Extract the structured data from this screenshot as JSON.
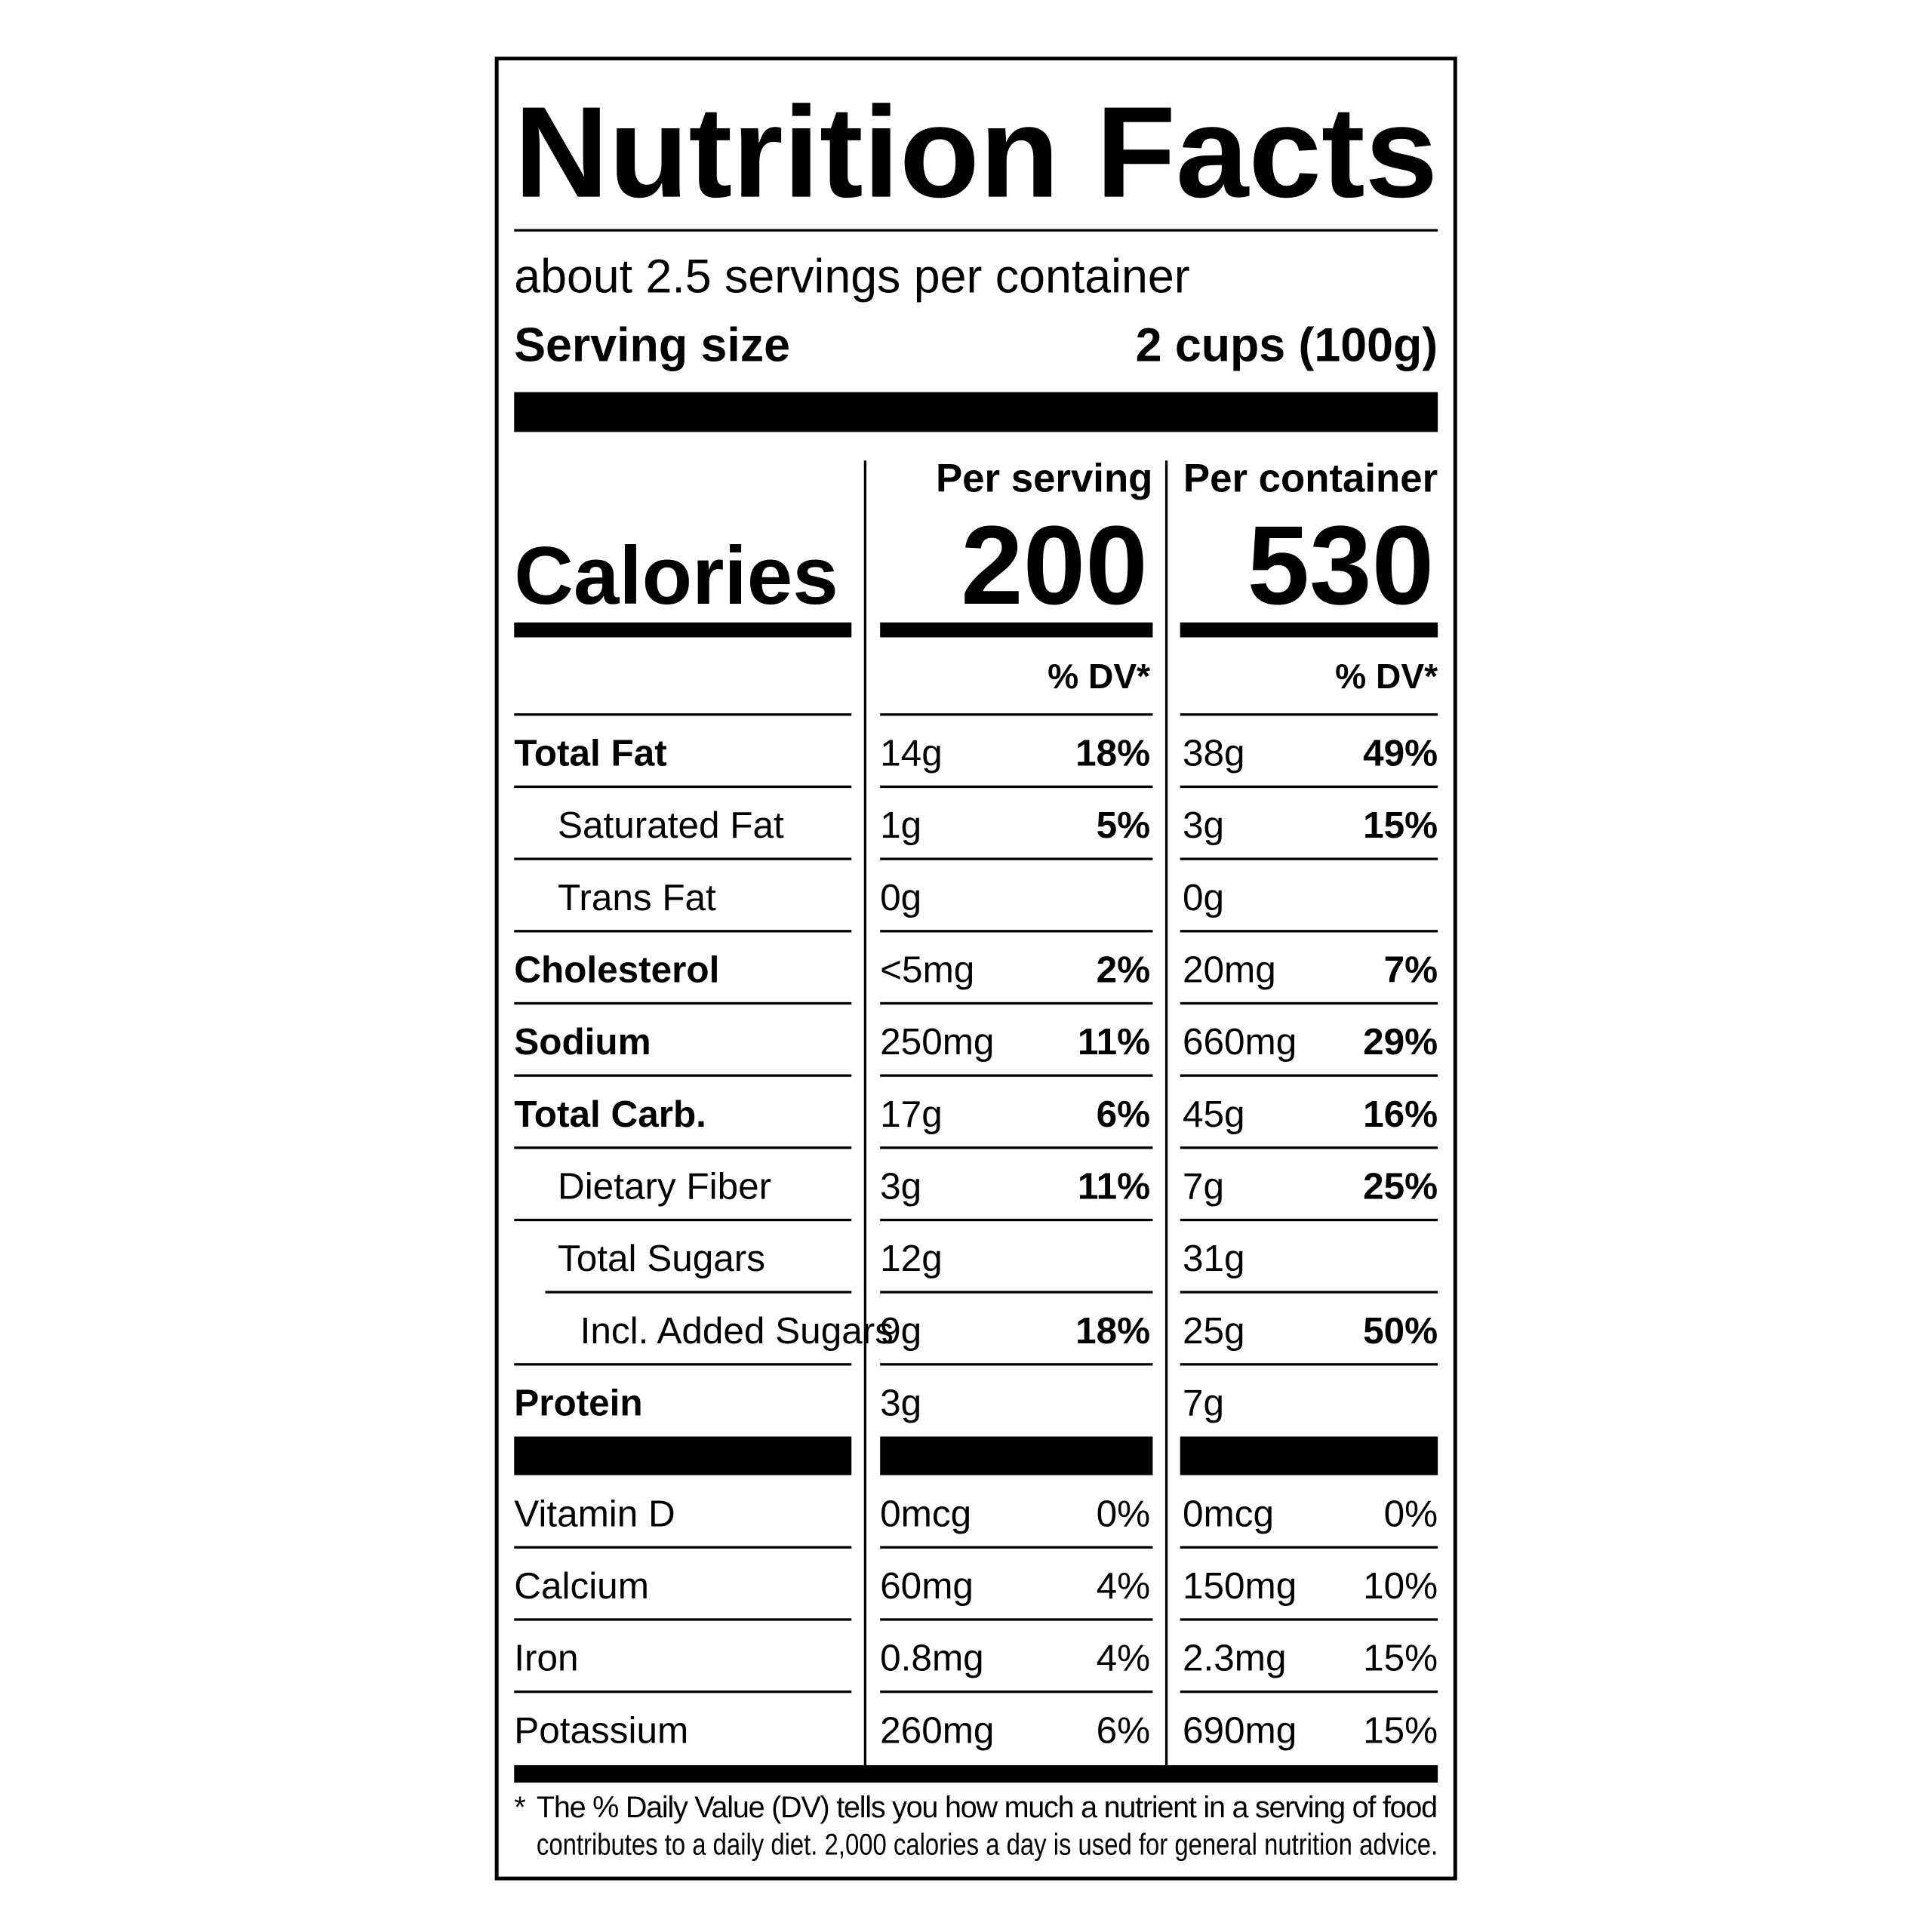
{
  "header": {
    "title": "Nutrition Facts",
    "servings": "about 2.5 servings per container",
    "serving_size_label": "Serving size",
    "serving_size": "2 cups (100g)"
  },
  "columns": [
    "Per serving",
    "Per container"
  ],
  "calories": {
    "label": "Calories",
    "values": [
      "200",
      "530"
    ]
  },
  "dv_header": "% DV*",
  "nutrients": [
    {
      "name": "Total Fat",
      "bold": true,
      "indent": 0,
      "serving": "14g",
      "serving_dv": "18%",
      "container": "38g",
      "container_dv": "49%"
    },
    {
      "name": "Saturated Fat",
      "bold": false,
      "indent": 1,
      "serving": "1g",
      "serving_dv": "5%",
      "container": "3g",
      "container_dv": "15%"
    },
    {
      "name": "Trans Fat",
      "bold": false,
      "indent": 1,
      "serving": "0g",
      "container": "0g"
    },
    {
      "name": "Cholesterol",
      "bold": true,
      "indent": 0,
      "serving": "<5mg",
      "serving_dv": "2%",
      "container": "20mg",
      "container_dv": "7%"
    },
    {
      "name": "Sodium",
      "bold": true,
      "indent": 0,
      "serving": "250mg",
      "serving_dv": "11%",
      "container": "660mg",
      "container_dv": "29%"
    },
    {
      "name": "Total Carb.",
      "bold": true,
      "indent": 0,
      "serving": "17g",
      "serving_dv": "6%",
      "container": "45g",
      "container_dv": "16%"
    },
    {
      "name": "Dietary Fiber",
      "bold": false,
      "indent": 1,
      "serving": "3g",
      "serving_dv": "11%",
      "container": "7g",
      "container_dv": "25%"
    },
    {
      "name": "Total Sugars",
      "bold": false,
      "indent": 1,
      "serving": "12g",
      "container": "31g"
    },
    {
      "name": "Incl. Added Sugars",
      "bold": false,
      "indent": 2,
      "serving": "9g",
      "serving_dv": "18%",
      "container": "25g",
      "container_dv": "50%"
    },
    {
      "name": "Protein",
      "bold": true,
      "indent": 0,
      "serving": "3g",
      "container": "7g"
    }
  ],
  "vitamins": [
    {
      "name": "Vitamin D",
      "serving": "0mcg",
      "serving_dv": "0%",
      "container": "0mcg",
      "container_dv": "0%"
    },
    {
      "name": "Calcium",
      "serving": "60mg",
      "serving_dv": "4%",
      "container": "150mg",
      "container_dv": "10%"
    },
    {
      "name": "Iron",
      "serving": "0.8mg",
      "serving_dv": "4%",
      "container": "2.3mg",
      "container_dv": "15%"
    },
    {
      "name": "Potassium",
      "serving": "260mg",
      "serving_dv": "6%",
      "container": "690mg",
      "container_dv": "15%"
    }
  ],
  "footnote": {
    "mark": "*",
    "lines": [
      "The % Daily Value (DV) tells you how much a nutrient in a serving of food",
      "contributes to a daily diet. 2,000 calories a day is used for general nutrition advice."
    ]
  }
}
